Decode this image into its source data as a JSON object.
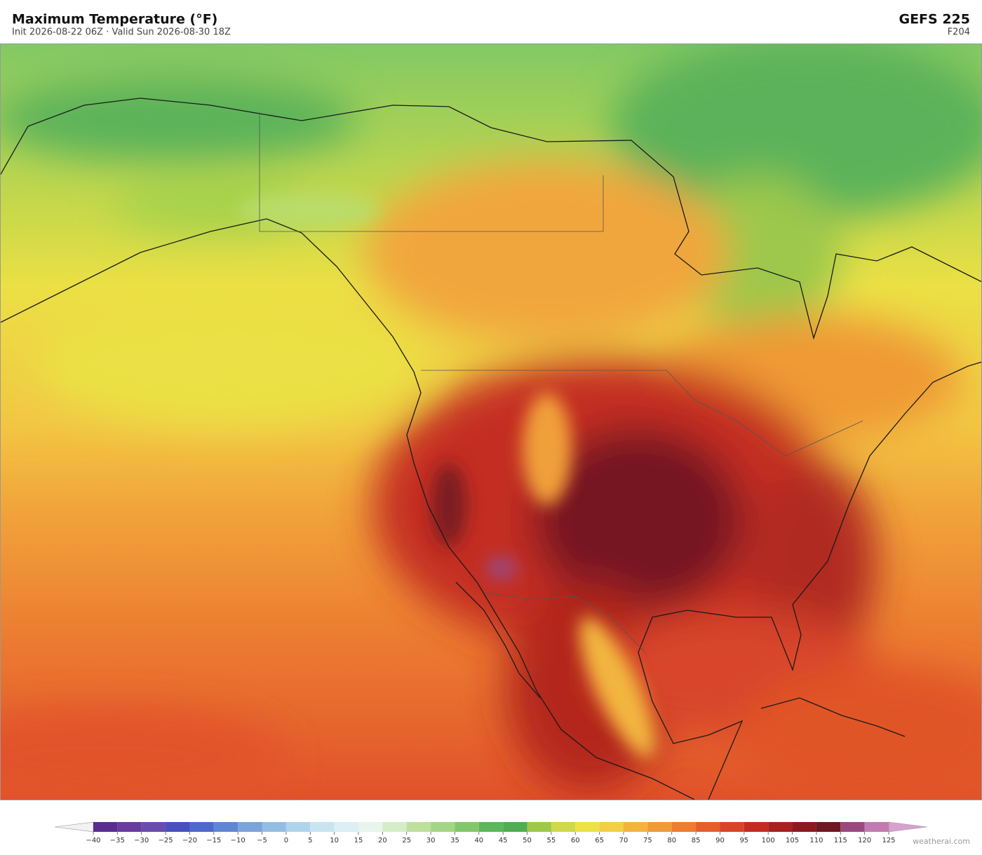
{
  "header": {
    "title": "Maximum Temperature  (°F)",
    "subtitle": "Init 2026-08-22 06Z  ·  Valid Sun 2026-08-30 18Z",
    "model": "GEFS  225",
    "forecast_hour": "F204"
  },
  "colorbar": {
    "ticks": [
      {
        "value": -40,
        "label": "−40"
      },
      {
        "value": -35,
        "label": "−35"
      },
      {
        "value": -30,
        "label": "−30"
      },
      {
        "value": -25,
        "label": "−25"
      },
      {
        "value": -20,
        "label": "−20"
      },
      {
        "value": -15,
        "label": "−15"
      },
      {
        "value": -10,
        "label": "−10"
      },
      {
        "value": -5,
        "label": "−5"
      },
      0,
      5,
      10,
      15,
      20,
      25,
      30,
      35,
      40,
      45,
      50,
      55,
      60,
      65,
      70,
      75,
      80,
      85,
      90,
      95,
      100,
      105,
      110,
      115,
      120,
      125
    ],
    "colors": [
      "#5a2c90",
      "#6a3a9e",
      "#6a4cae",
      "#4a4fbe",
      "#4f68cb",
      "#5f86d3",
      "#7aa4da",
      "#94bde3",
      "#afd3ec",
      "#c7e4f1",
      "#dbeff5",
      "#e8f5ec",
      "#d5edc6",
      "#bde09c",
      "#a3d684",
      "#82c86a",
      "#5cb85a",
      "#4fae4f",
      "#9dc84a",
      "#cfd94a",
      "#ece244",
      "#f2cf45",
      "#f3b43f",
      "#f09a38",
      "#ec7d31",
      "#e65f2b",
      "#d94428",
      "#c42c22",
      "#a8201f",
      "#8b1a20",
      "#701822",
      "#9a4a7e",
      "#c27bb0",
      "#d7a2cf"
    ]
  },
  "watermark": "weatherai.com"
}
